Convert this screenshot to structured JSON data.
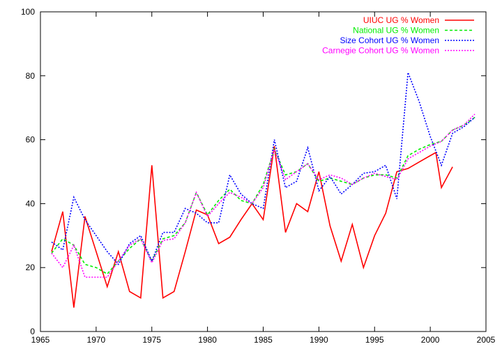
{
  "chart_data": {
    "type": "line",
    "title": "",
    "xlabel": "",
    "ylabel": "",
    "xlim": [
      1965,
      2005
    ],
    "ylim": [
      0,
      100
    ],
    "xticks": [
      1965,
      1970,
      1975,
      1980,
      1985,
      1990,
      1995,
      2000,
      2005
    ],
    "yticks": [
      0,
      20,
      40,
      60,
      80,
      100
    ],
    "legend_position": "top-right",
    "grid": false,
    "series": [
      {
        "name": "UIUC UG % Women",
        "color": "#ff0000",
        "dash": "solid",
        "points": [
          [
            1966,
            25
          ],
          [
            1967,
            37.5
          ],
          [
            1968,
            7.5
          ],
          [
            1969,
            36
          ],
          [
            1970,
            25
          ],
          [
            1971,
            14
          ],
          [
            1972,
            25
          ],
          [
            1973,
            12.5
          ],
          [
            1974,
            10.5
          ],
          [
            1975,
            52
          ],
          [
            1976,
            10.5
          ],
          [
            1977,
            12.5
          ],
          [
            1978,
            25
          ],
          [
            1979,
            38
          ],
          [
            1980,
            36.5
          ],
          [
            1981,
            27.5
          ],
          [
            1982,
            29.5
          ],
          [
            1983,
            35
          ],
          [
            1984,
            40
          ],
          [
            1985,
            35
          ],
          [
            1986,
            58
          ],
          [
            1987,
            31
          ],
          [
            1988,
            40
          ],
          [
            1989,
            37.5
          ],
          [
            1990,
            50
          ],
          [
            1991,
            33
          ],
          [
            1992,
            22
          ],
          [
            1993,
            33.5
          ],
          [
            1994,
            20
          ],
          [
            1995,
            30
          ],
          [
            1996,
            37
          ],
          [
            1997,
            50
          ],
          [
            1998,
            51
          ],
          [
            1999,
            53
          ],
          [
            2000,
            55
          ],
          [
            2000.5,
            56
          ],
          [
            2001,
            45
          ],
          [
            2002,
            51.5
          ]
        ]
      },
      {
        "name": "National UG % Women",
        "color": "#00ee00",
        "dash": "dashed",
        "points": [
          [
            1966,
            24.5
          ],
          [
            1967,
            29
          ],
          [
            1968,
            27
          ],
          [
            1969,
            21
          ],
          [
            1970,
            20
          ],
          [
            1971,
            18
          ],
          [
            1972,
            22
          ],
          [
            1973,
            26
          ],
          [
            1974,
            29
          ],
          [
            1975,
            22
          ],
          [
            1976,
            29
          ],
          [
            1977,
            30
          ],
          [
            1978,
            34
          ],
          [
            1979,
            43.5
          ],
          [
            1980,
            36.5
          ],
          [
            1981,
            41
          ],
          [
            1982,
            44.5
          ],
          [
            1983,
            41
          ],
          [
            1984,
            40
          ],
          [
            1985,
            46
          ],
          [
            1986,
            57
          ],
          [
            1987,
            49
          ],
          [
            1988,
            50
          ],
          [
            1989,
            52.5
          ],
          [
            1990,
            47
          ],
          [
            1991,
            48
          ],
          [
            1992,
            47
          ],
          [
            1993,
            46
          ],
          [
            1994,
            48
          ],
          [
            1995,
            49
          ],
          [
            1996,
            49
          ],
          [
            1997,
            48
          ],
          [
            1998,
            55
          ],
          [
            1999,
            57
          ],
          [
            2000,
            58.5
          ],
          [
            2001,
            59.5
          ],
          [
            2002,
            63
          ],
          [
            2003,
            64.5
          ],
          [
            2004,
            67
          ]
        ]
      },
      {
        "name": "Size Cohort UG % Women",
        "color": "#0000ff",
        "dash": "dotted",
        "points": [
          [
            1966,
            28
          ],
          [
            1967,
            25.5
          ],
          [
            1968,
            42
          ],
          [
            1969,
            35
          ],
          [
            1970,
            30
          ],
          [
            1971,
            25
          ],
          [
            1972,
            21
          ],
          [
            1973,
            27.5
          ],
          [
            1974,
            30
          ],
          [
            1975,
            22
          ],
          [
            1976,
            31
          ],
          [
            1977,
            31
          ],
          [
            1978,
            38.5
          ],
          [
            1979,
            37
          ],
          [
            1980,
            34
          ],
          [
            1981,
            34
          ],
          [
            1982,
            49
          ],
          [
            1983,
            43
          ],
          [
            1984,
            40
          ],
          [
            1985,
            38.5
          ],
          [
            1986,
            60
          ],
          [
            1987,
            45
          ],
          [
            1988,
            47
          ],
          [
            1989,
            57.5
          ],
          [
            1990,
            44
          ],
          [
            1991,
            48.5
          ],
          [
            1992,
            43
          ],
          [
            1993,
            46
          ],
          [
            1994,
            49.5
          ],
          [
            1995,
            50
          ],
          [
            1996,
            52
          ],
          [
            1997,
            41.5
          ],
          [
            1998,
            81
          ],
          [
            1999,
            72
          ],
          [
            2000,
            61
          ],
          [
            2001,
            52
          ],
          [
            2002,
            62
          ],
          [
            2003,
            64
          ],
          [
            2004,
            67
          ]
        ]
      },
      {
        "name": "Carnegie Cohort UG % Women",
        "color": "#ff00ff",
        "dash": "dotted",
        "points": [
          [
            1966,
            24.5
          ],
          [
            1967,
            20
          ],
          [
            1968,
            27
          ],
          [
            1969,
            17
          ],
          [
            1970,
            17
          ],
          [
            1971,
            17
          ],
          [
            1972,
            22
          ],
          [
            1973,
            27
          ],
          [
            1974,
            29
          ],
          [
            1975,
            21.5
          ],
          [
            1976,
            28.5
          ],
          [
            1977,
            29
          ],
          [
            1978,
            34
          ],
          [
            1979,
            43.5
          ],
          [
            1980,
            36
          ],
          [
            1981,
            40
          ],
          [
            1982,
            43.5
          ],
          [
            1983,
            42
          ],
          [
            1984,
            40
          ],
          [
            1985,
            45
          ],
          [
            1986,
            57
          ],
          [
            1987,
            47.5
          ],
          [
            1988,
            50
          ],
          [
            1989,
            52.5
          ],
          [
            1990,
            47.5
          ],
          [
            1991,
            49
          ],
          [
            1992,
            48
          ],
          [
            1993,
            46
          ],
          [
            1994,
            48
          ],
          [
            1995,
            49.5
          ],
          [
            1996,
            48.5
          ],
          [
            1997,
            47.5
          ],
          [
            1998,
            54
          ],
          [
            1999,
            56
          ],
          [
            2000,
            58
          ],
          [
            2001,
            59.5
          ],
          [
            2002,
            63
          ],
          [
            2003,
            64.5
          ],
          [
            2004,
            68
          ]
        ]
      }
    ]
  }
}
